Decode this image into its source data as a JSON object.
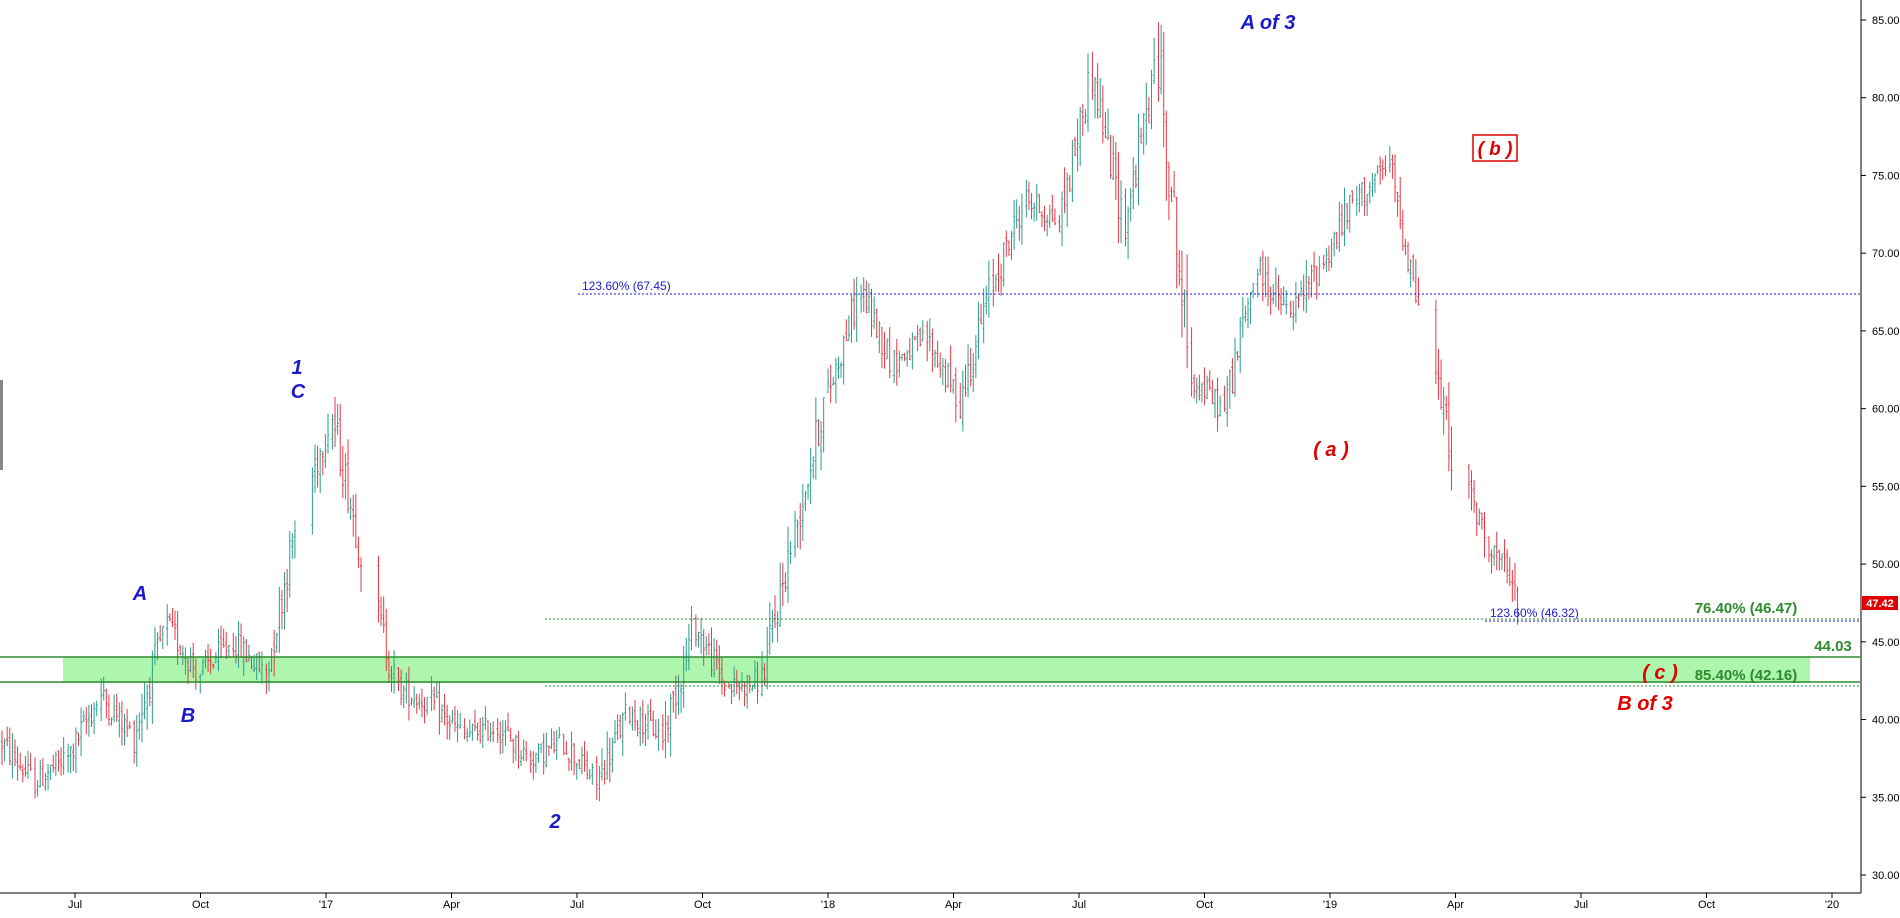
{
  "chart_data": {
    "type": "ohlc",
    "y_axis": {
      "min": 30,
      "max": 85,
      "ticks": [
        "30.00",
        "35.00",
        "40.00",
        "45.00",
        "50.00",
        "55.00",
        "60.00",
        "65.00",
        "70.00",
        "75.00",
        "80.00",
        "85.00"
      ],
      "position": "right"
    },
    "x_axis": {
      "ticks": [
        "Jul",
        "Oct",
        "'17",
        "Apr",
        "Jul",
        "Oct",
        "'18",
        "Apr",
        "Jul",
        "Oct",
        "'19",
        "Apr",
        "Jul",
        "Oct",
        "'20"
      ]
    },
    "last_price": "47.42",
    "price_path": [
      [
        "2016-03",
        38.5
      ],
      [
        "2016-04",
        36.0
      ],
      [
        "2016-05",
        37.5
      ],
      [
        "2016-06",
        41.5
      ],
      [
        "2016-07",
        39.0
      ],
      [
        "2016-08",
        46.0
      ],
      [
        "2016-09",
        43.0
      ],
      [
        "2016-10",
        45.0
      ],
      [
        "2016-11",
        43.0
      ],
      [
        "2016-11b",
        53.0
      ],
      [
        "2016-12",
        59.5
      ],
      [
        "2016-12b",
        50.0
      ],
      [
        "2017-01",
        42.0
      ],
      [
        "2017-02",
        41.0
      ],
      [
        "2017-03",
        39.0
      ],
      [
        "2017-04",
        39.5
      ],
      [
        "2017-05",
        37.5
      ],
      [
        "2017-06",
        38.5
      ],
      [
        "2017-07",
        36.0
      ],
      [
        "2017-08",
        40.5
      ],
      [
        "2017-09",
        39.0
      ],
      [
        "2017-10",
        46.0
      ],
      [
        "2017-11",
        42.0
      ],
      [
        "2017-11b",
        42.5
      ],
      [
        "2017-12",
        52.0
      ],
      [
        "2018-01",
        61.0
      ],
      [
        "2018-02",
        67.5
      ],
      [
        "2018-03",
        63.0
      ],
      [
        "2018-04",
        64.5
      ],
      [
        "2018-05",
        60.5
      ],
      [
        "2018-06",
        68.0
      ],
      [
        "2018-07",
        73.5
      ],
      [
        "2018-08",
        72.0
      ],
      [
        "2018-09",
        81.5
      ],
      [
        "2018-10",
        72.0
      ],
      [
        "2018-11",
        82.5
      ],
      [
        "2018-12",
        62.0
      ],
      [
        "2019-01",
        60.0
      ],
      [
        "2019-02",
        69.0
      ],
      [
        "2019-03",
        66.0
      ],
      [
        "2019-04",
        69.5
      ],
      [
        "2019-05",
        73.5
      ],
      [
        "2019-05b",
        75.5
      ],
      [
        "2019-06",
        66.0
      ],
      [
        "2019-06b",
        56.5
      ],
      [
        "2019-07",
        51.5
      ],
      [
        "2019-07b",
        47.4
      ]
    ],
    "horizontal_lines": [
      {
        "label": "123.60% (67.45)",
        "value": 67.45,
        "color": "#1a1acc",
        "style": "dotted"
      },
      {
        "label": "123.60% (46.32)",
        "value": 46.32,
        "color": "#1a1acc",
        "style": "dotted"
      },
      {
        "label": "76.40% (46.47)",
        "value": 46.47,
        "color": "#2e8b2e",
        "style": "dotted"
      },
      {
        "label": "44.03",
        "value": 44.03,
        "color": "#2e8b2e",
        "style": "solid"
      },
      {
        "label": "85.40% (42.16)",
        "value": 42.16,
        "color": "#2e8b2e",
        "style": "dotted"
      }
    ],
    "zone": {
      "from": 42.4,
      "to": 44.03,
      "color": "#aaf5aa"
    }
  },
  "waves": {
    "blue_a": "A",
    "blue_b": "B",
    "blue_1": "1",
    "blue_c": "C",
    "blue_2": "2",
    "blue_a_of_3": "A of 3",
    "red_a": "( a )",
    "red_b": "( b )",
    "red_c": "( c )",
    "red_b_of_3": "B of 3"
  },
  "colors": {
    "up_bar": "#2a9d8f",
    "down_bar": "#e63946",
    "wave_blue": "#1a1acc",
    "wave_red": "#e00000",
    "fib_green": "#2e8b2e",
    "last_price_bg": "#e00000"
  }
}
